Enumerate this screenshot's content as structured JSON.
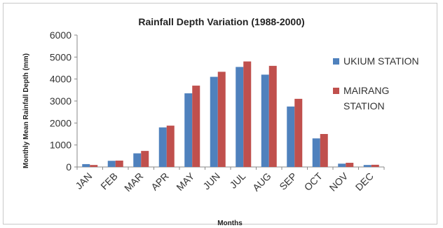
{
  "chart_data": {
    "type": "bar",
    "title": "Rainfall Depth Variation (1988-2000)",
    "xlabel": "Months",
    "ylabel": "Monthly Mean Rainfall Depth (mm)",
    "categories": [
      "JAN",
      "FEB",
      "MAR",
      "APR",
      "MAY",
      "JUN",
      "JUL",
      "AUG",
      "SEP",
      "OCT",
      "NOV",
      "DEC"
    ],
    "ylim": [
      0,
      6000
    ],
    "yticks": [
      0,
      1000,
      2000,
      3000,
      4000,
      5000,
      6000
    ],
    "grid": false,
    "legend_position": "right",
    "series": [
      {
        "name": "UKIUM STATION",
        "color": "#4f81bd",
        "values": [
          130,
          280,
          620,
          1800,
          3350,
          4100,
          4550,
          4200,
          2750,
          1300,
          150,
          90
        ]
      },
      {
        "name": "MAIRANG STATION",
        "color": "#c0504d",
        "values": [
          90,
          290,
          730,
          1880,
          3700,
          4330,
          4800,
          4600,
          3100,
          1500,
          190,
          100
        ]
      }
    ],
    "legend_lines": [
      [
        "UKIUM STATION"
      ],
      [
        "MAIRANG",
        "STATION"
      ]
    ]
  }
}
